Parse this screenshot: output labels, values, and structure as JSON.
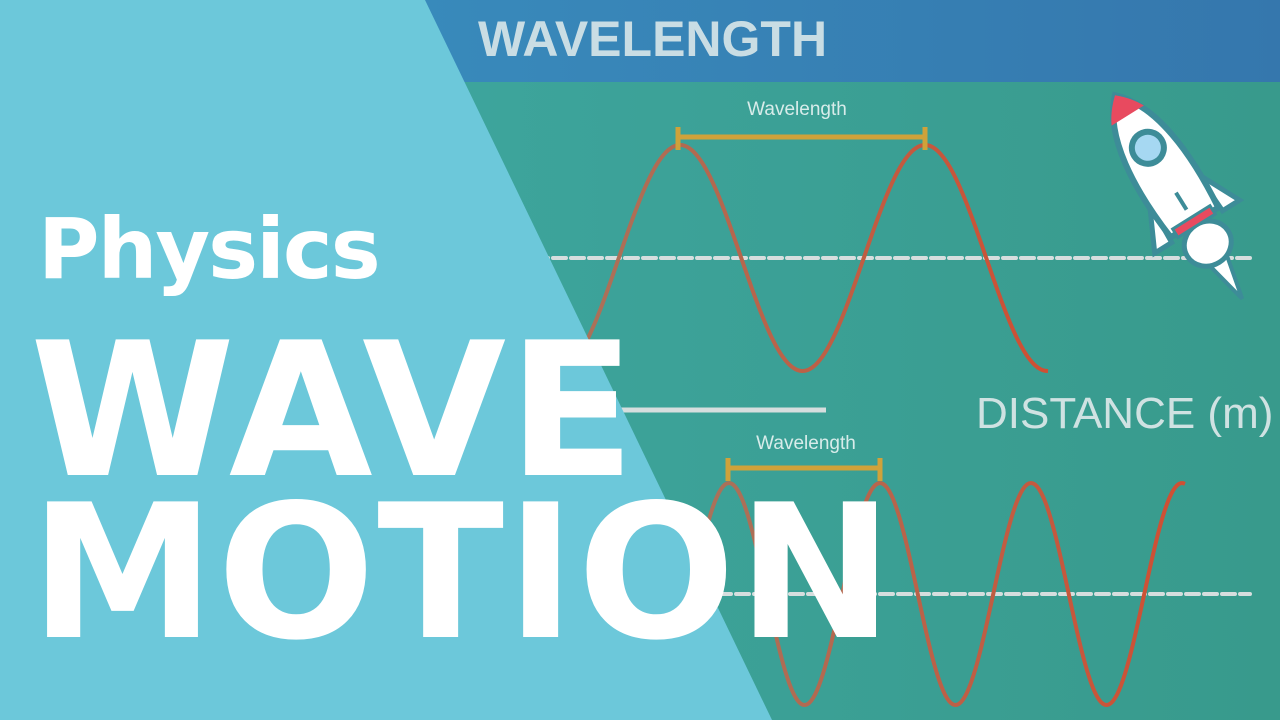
{
  "diagram": {
    "header_title": "WAVELENGTH",
    "top_wave_label": "Wavelength",
    "bottom_wave_label": "Wavelength",
    "axis_label": "DISTANCE (m)"
  },
  "overlay": {
    "subject": "Physics",
    "title_line1": "WAVE",
    "title_line2": "MOTION"
  },
  "icons": [
    "rocket-icon"
  ],
  "colors": {
    "background": "#3aa197",
    "header": "#3781b6",
    "left_panel": "#6cc8da",
    "wave": "#c65238",
    "wavelength_bar": "#cfa23a",
    "dashed_line": "#d6dede",
    "text": "#ffffff"
  }
}
